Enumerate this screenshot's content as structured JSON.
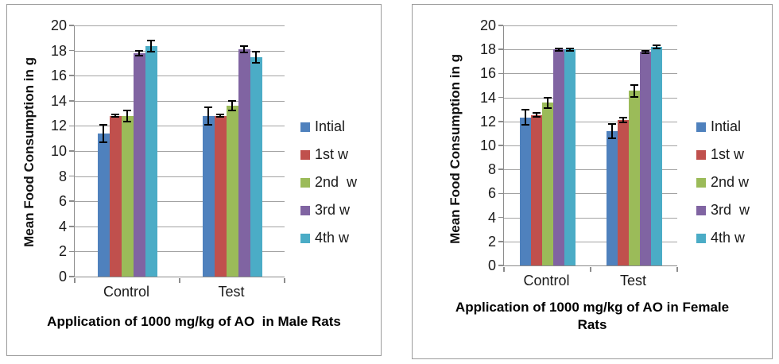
{
  "colors": {
    "palette": [
      "#4F81BD",
      "#C0504D",
      "#9BBB59",
      "#8064A2",
      "#4BACC6"
    ],
    "gridline": "#A3A3A3",
    "axis": "#8C8C8C",
    "frame": "#9B9B9B",
    "error_bar": "#000000",
    "background": "#FFFFFF"
  },
  "chart_data": [
    {
      "type": "bar",
      "title": "Application of 1000 mg/kg of AO  in Male Rats",
      "xlabel": "",
      "ylabel": "Mean Food Consumption in g",
      "categories": [
        "Control",
        "Test"
      ],
      "ylim": [
        0,
        20
      ],
      "ytick_step": 2,
      "grid": true,
      "legend_position": "right",
      "series": [
        {
          "name": "Intial",
          "values": [
            11.4,
            12.8
          ],
          "errors": [
            0.7,
            0.7
          ]
        },
        {
          "name": "1st w",
          "values": [
            12.8,
            12.8
          ],
          "errors": [
            0.1,
            0.1
          ]
        },
        {
          "name": "2nd  w",
          "values": [
            12.8,
            13.6
          ],
          "errors": [
            0.45,
            0.4
          ]
        },
        {
          "name": "3rd w",
          "values": [
            17.8,
            18.1
          ],
          "errors": [
            0.2,
            0.25
          ]
        },
        {
          "name": "4th w",
          "values": [
            18.35,
            17.45
          ],
          "errors": [
            0.45,
            0.45
          ]
        }
      ]
    },
    {
      "type": "bar",
      "title": "Application of 1000 mg/kg of AO in Female\nRats",
      "xlabel": "",
      "ylabel": "Mean Food Consumption in g",
      "categories": [
        "Control",
        "Test"
      ],
      "ylim": [
        0,
        20
      ],
      "ytick_step": 2,
      "grid": true,
      "legend_position": "right",
      "series": [
        {
          "name": "Intial",
          "values": [
            12.35,
            11.2
          ],
          "errors": [
            0.6,
            0.6
          ]
        },
        {
          "name": "1st w",
          "values": [
            12.55,
            12.15
          ],
          "errors": [
            0.15,
            0.2
          ]
        },
        {
          "name": "2nd w",
          "values": [
            13.55,
            14.55
          ],
          "errors": [
            0.45,
            0.5
          ]
        },
        {
          "name": "3rd  w",
          "values": [
            18.0,
            17.8
          ],
          "errors": [
            0.1,
            0.1
          ]
        },
        {
          "name": "4th w",
          "values": [
            18.0,
            18.2
          ],
          "errors": [
            0.1,
            0.12
          ]
        }
      ]
    }
  ]
}
